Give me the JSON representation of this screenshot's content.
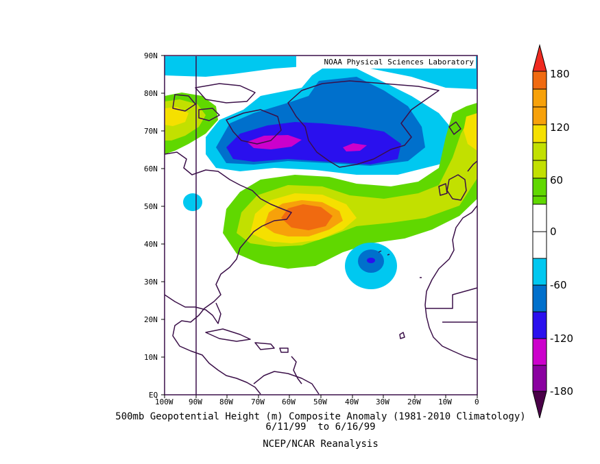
{
  "credit": "NOAA Physical Sciences Laboratory",
  "caption": {
    "line1": "500mb Geopotential Height (m) Composite Anomaly (1981-2010 Climatology)",
    "line2": "6/11/99  to 6/16/99",
    "line3": "NCEP/NCAR Reanalysis"
  },
  "lat_labels": [
    "EQ",
    "10N",
    "20N",
    "30N",
    "40N",
    "50N",
    "60N",
    "70N",
    "80N",
    "90N"
  ],
  "lon_labels": [
    "100W",
    "90W",
    "80W",
    "70W",
    "60W",
    "50W",
    "40W",
    "30W",
    "20W",
    "10W",
    "0"
  ],
  "colorbar": {
    "labels": [
      "180",
      "120",
      "60",
      "0",
      "-60",
      "-120",
      "-180"
    ],
    "colors": [
      "#ef2a20",
      "#f06a10",
      "#f7a10a",
      "#f5e000",
      "#c2e000",
      "#60d800",
      "#ffffff",
      "#ffffff",
      "#00c8f0",
      "#0070cc",
      "#2a10ee",
      "#cc00cc",
      "#8a00a0",
      "#4a0048"
    ]
  },
  "colors": {
    "coast": "#3a0f48",
    "frame": "#3a0f48",
    "pos_60_90": "#60d800",
    "pos_90_120": "#c2e000",
    "pos_120_150": "#f5e000",
    "pos_150_180": "#f7a10a",
    "pos_180_210": "#f06a10",
    "neg_60_90": "#00c8f0",
    "neg_90_120": "#0070cc",
    "neg_120_150": "#2a10ee",
    "neg_150_180": "#cc00cc"
  }
}
